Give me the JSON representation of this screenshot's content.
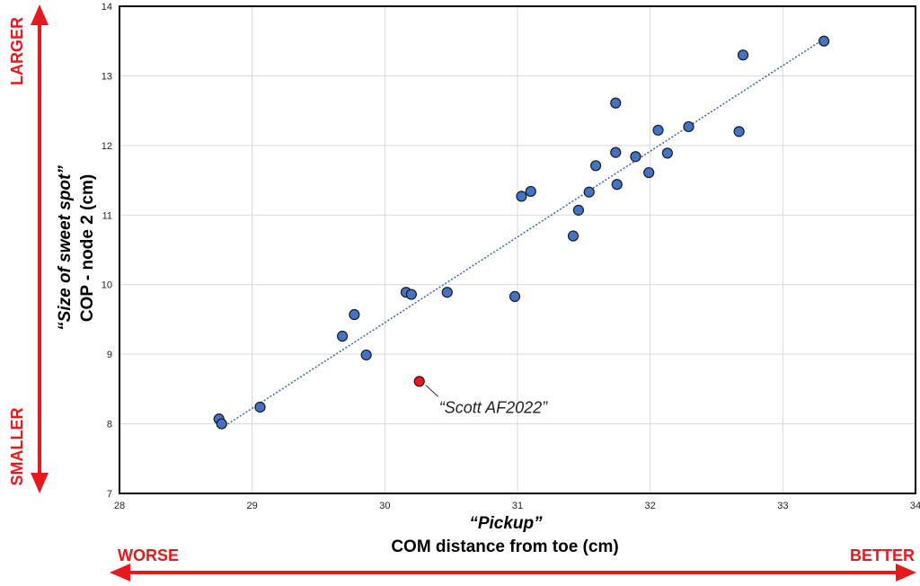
{
  "chart_data": {
    "type": "scatter",
    "xlim": [
      28,
      34
    ],
    "ylim": [
      7,
      14
    ],
    "x_ticks": [
      28,
      29,
      30,
      31,
      32,
      33,
      34
    ],
    "y_ticks": [
      7,
      8,
      9,
      10,
      11,
      12,
      13,
      14
    ],
    "grid": true,
    "xlabel_line1": "“Pickup”",
    "xlabel_line2": "COM distance from toe (cm)",
    "ylabel_line1": "“Size of sweet spot”",
    "ylabel_line2": "COP - node 2 (cm)",
    "points_color": "#4472c4",
    "highlight_color": "#e8191c",
    "trendline_color": "#3a62b0",
    "points": [
      {
        "x": 28.75,
        "y": 8.07
      },
      {
        "x": 28.77,
        "y": 8.0
      },
      {
        "x": 29.06,
        "y": 8.24
      },
      {
        "x": 29.68,
        "y": 9.26
      },
      {
        "x": 29.77,
        "y": 9.57
      },
      {
        "x": 29.86,
        "y": 8.99
      },
      {
        "x": 30.16,
        "y": 9.89
      },
      {
        "x": 30.2,
        "y": 9.86
      },
      {
        "x": 30.47,
        "y": 9.89
      },
      {
        "x": 30.98,
        "y": 9.83
      },
      {
        "x": 31.03,
        "y": 11.27
      },
      {
        "x": 31.1,
        "y": 11.34
      },
      {
        "x": 31.42,
        "y": 10.7
      },
      {
        "x": 31.46,
        "y": 11.07
      },
      {
        "x": 31.54,
        "y": 11.33
      },
      {
        "x": 31.59,
        "y": 11.71
      },
      {
        "x": 31.74,
        "y": 11.9
      },
      {
        "x": 31.74,
        "y": 12.61
      },
      {
        "x": 31.75,
        "y": 11.44
      },
      {
        "x": 31.89,
        "y": 11.84
      },
      {
        "x": 31.99,
        "y": 11.61
      },
      {
        "x": 32.06,
        "y": 12.22
      },
      {
        "x": 32.13,
        "y": 11.89
      },
      {
        "x": 32.29,
        "y": 12.27
      },
      {
        "x": 32.67,
        "y": 12.2
      },
      {
        "x": 32.7,
        "y": 13.3
      },
      {
        "x": 33.31,
        "y": 13.5
      }
    ],
    "highlight_point": {
      "x": 30.26,
      "y": 8.61,
      "label": "“Scott AF2022”"
    },
    "trendline": {
      "x1": 28.77,
      "y1": 7.94,
      "x2": 33.31,
      "y2": 13.53
    }
  },
  "arrows": {
    "left_label": "WORSE",
    "right_label": "BETTER",
    "top_label": "LARGER",
    "bottom_label": "SMALLER",
    "color": "#e8191c"
  }
}
